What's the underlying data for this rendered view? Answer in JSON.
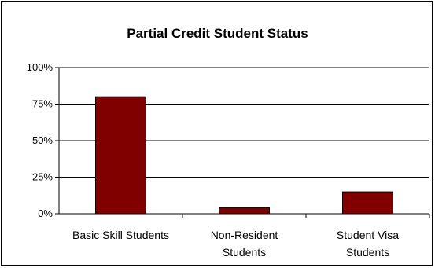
{
  "chart_data": {
    "type": "bar",
    "title": "Partial Credit Student Status",
    "categories": [
      [
        "Basic Skill Students"
      ],
      [
        "Non-Resident",
        "Students"
      ],
      [
        "Student Visa",
        "Students"
      ]
    ],
    "values": [
      80,
      4,
      15
    ],
    "ylim": [
      0,
      100
    ],
    "yticks": [
      "0%",
      "25%",
      "50%",
      "75%",
      "100%"
    ],
    "ytick_values": [
      0,
      25,
      50,
      75,
      100
    ],
    "grid": true,
    "bar_color": "#800000"
  }
}
